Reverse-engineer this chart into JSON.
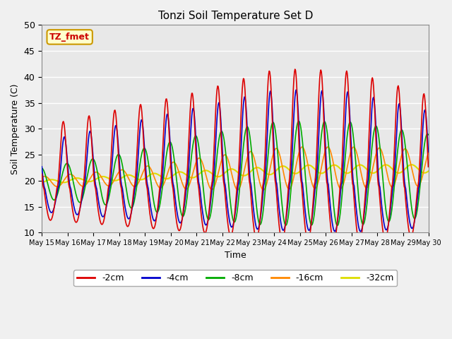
{
  "title": "Tonzi Soil Temperature Set D",
  "xlabel": "Time",
  "ylabel": "Soil Temperature (C)",
  "ylim": [
    10,
    50
  ],
  "yticks": [
    10,
    15,
    20,
    25,
    30,
    35,
    40,
    45,
    50
  ],
  "annotation": "TZ_fmet",
  "annotation_color": "#cc0000",
  "annotation_bg": "#ffffcc",
  "annotation_border": "#cc9900",
  "series_names": [
    "-2cm",
    "-4cm",
    "-8cm",
    "-16cm",
    "-32cm"
  ],
  "series_colors": [
    "#dd0000",
    "#0000cc",
    "#00aa00",
    "#ff8800",
    "#dddd00"
  ],
  "series_linewidths": [
    1.2,
    1.2,
    1.2,
    1.2,
    1.5
  ],
  "background_color": "#e8e8e8",
  "fig_facecolor": "#f0f0f0",
  "grid_color": "#ffffff",
  "n_days": 15,
  "points_per_day": 48,
  "day_start": 15
}
